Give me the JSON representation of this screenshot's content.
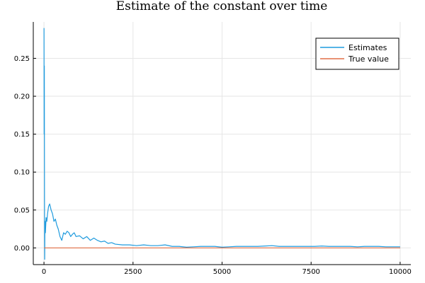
{
  "chart_data": {
    "type": "line",
    "title": "Estimate of the constant over time",
    "xlabel": "",
    "ylabel": "",
    "xlim": [
      -300,
      10300
    ],
    "ylim": [
      -0.022,
      0.298
    ],
    "xticks": [
      0,
      2500,
      5000,
      7500,
      10000
    ],
    "xtick_labels": [
      "0",
      "2500",
      "5000",
      "7500",
      "10000"
    ],
    "yticks": [
      0.0,
      0.05,
      0.1,
      0.15,
      0.2,
      0.25
    ],
    "ytick_labels": [
      "0.00",
      "0.05",
      "0.10",
      "0.15",
      "0.20",
      "0.25"
    ],
    "grid": true,
    "legend_position": "top-right",
    "series": [
      {
        "name": "Estimates",
        "color": "#1f9bde",
        "x": [
          1,
          5,
          10,
          15,
          20,
          25,
          30,
          40,
          50,
          60,
          80,
          100,
          130,
          160,
          200,
          240,
          280,
          320,
          360,
          400,
          450,
          500,
          550,
          600,
          650,
          700,
          750,
          800,
          850,
          900,
          1000,
          1100,
          1200,
          1300,
          1400,
          1500,
          1600,
          1700,
          1800,
          1900,
          2000,
          2200,
          2400,
          2600,
          2800,
          3000,
          3200,
          3400,
          3600,
          3800,
          4000,
          4200,
          4400,
          4600,
          4800,
          5000,
          5200,
          5400,
          5600,
          5800,
          6000,
          6200,
          6400,
          6600,
          6800,
          7000,
          7200,
          7400,
          7600,
          7800,
          8000,
          8200,
          8400,
          8600,
          8800,
          9000,
          9200,
          9400,
          9600,
          9800,
          10000
        ],
        "y": [
          0.29,
          0.15,
          0.24,
          0.06,
          -0.015,
          0.02,
          0.035,
          0.02,
          0.03,
          0.04,
          0.035,
          0.045,
          0.055,
          0.058,
          0.05,
          0.045,
          0.035,
          0.038,
          0.03,
          0.025,
          0.015,
          0.01,
          0.02,
          0.018,
          0.022,
          0.02,
          0.015,
          0.018,
          0.02,
          0.015,
          0.016,
          0.012,
          0.015,
          0.01,
          0.013,
          0.01,
          0.008,
          0.009,
          0.006,
          0.007,
          0.005,
          0.004,
          0.004,
          0.003,
          0.004,
          0.003,
          0.003,
          0.004,
          0.002,
          0.002,
          0.001,
          0.0015,
          0.002,
          0.002,
          0.002,
          0.001,
          0.0015,
          0.002,
          0.002,
          0.002,
          0.002,
          0.0025,
          0.003,
          0.002,
          0.002,
          0.002,
          0.002,
          0.002,
          0.002,
          0.0025,
          0.002,
          0.002,
          0.002,
          0.002,
          0.0015,
          0.002,
          0.002,
          0.002,
          0.0015,
          0.0015,
          0.0015
        ]
      },
      {
        "name": "True value",
        "color": "#e26f46",
        "x": [
          1,
          10000
        ],
        "y": [
          0,
          0
        ]
      }
    ]
  }
}
